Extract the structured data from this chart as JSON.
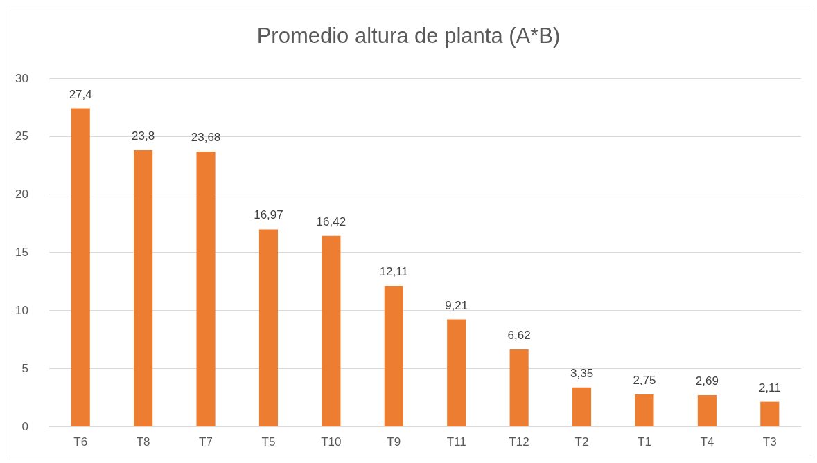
{
  "chart_data": {
    "type": "bar",
    "title": "Promedio altura de planta (A*B)",
    "categories": [
      "T6",
      "T8",
      "T7",
      "T5",
      "T10",
      "T9",
      "T11",
      "T12",
      "T2",
      "T1",
      "T4",
      "T3"
    ],
    "values": [
      27.4,
      23.8,
      23.68,
      16.97,
      16.42,
      12.11,
      9.21,
      6.62,
      3.35,
      2.75,
      2.69,
      2.11
    ],
    "value_labels": [
      "27,4",
      "23,8",
      "23,68",
      "16,97",
      "16,42",
      "12,11",
      "9,21",
      "6,62",
      "3,35",
      "2,75",
      "2,69",
      "2,11"
    ],
    "color": "#ed7d31",
    "ylim": [
      0,
      30
    ],
    "yticks": [
      0,
      5,
      10,
      15,
      20,
      25,
      30
    ],
    "grid": "y"
  }
}
